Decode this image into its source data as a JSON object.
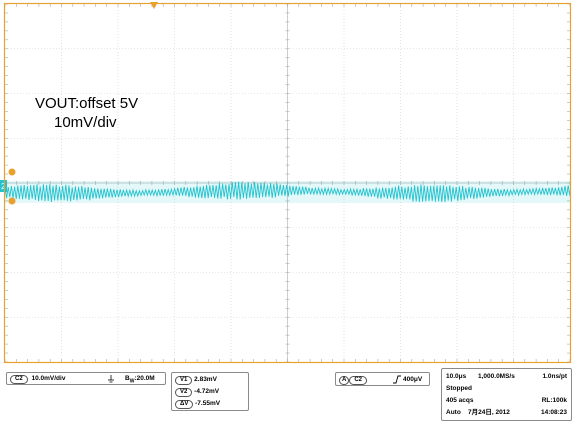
{
  "screen": {
    "background": "#ffffff",
    "grid_color": "#cfcfcf",
    "frame_color": "#e8a030",
    "trace_color": "#22c3d0",
    "trigger_marker_color": "#e8a030",
    "horizontal_divisions": 10,
    "vertical_divisions": 8
  },
  "annotation": {
    "line1": "VOUT:offset 5V",
    "line2": "10mV/div"
  },
  "channel": {
    "name": "C2",
    "scale": "10.0mV/div",
    "coupling_icon": "dc-coupling-icon",
    "bandwidth": "B",
    "bandwidth_sub": "W",
    "bandwidth_value": ":20.0M",
    "ground_marker_label": "2"
  },
  "cursors": {
    "v1_label": "V1",
    "v1_value": "2.83mV",
    "v2_label": "V2",
    "v2_value": "-4.72mV",
    "dv_label": "ΔV",
    "dv_value": "-7.55mV"
  },
  "trigger": {
    "mode_label": "A",
    "channel": "C2",
    "slope_icon": "rising-edge-icon",
    "level": "400μV"
  },
  "acquisition": {
    "timebase": "10.0μs",
    "sample_rate": "1,000.0MS/s",
    "resolution": "1.0ns/pt",
    "state": "Stopped",
    "acqs": "405 acqs",
    "record_length": "RL:100k",
    "trigger_mode": "Auto",
    "date": "7月24日, 2012",
    "time": "14:08:23"
  }
}
